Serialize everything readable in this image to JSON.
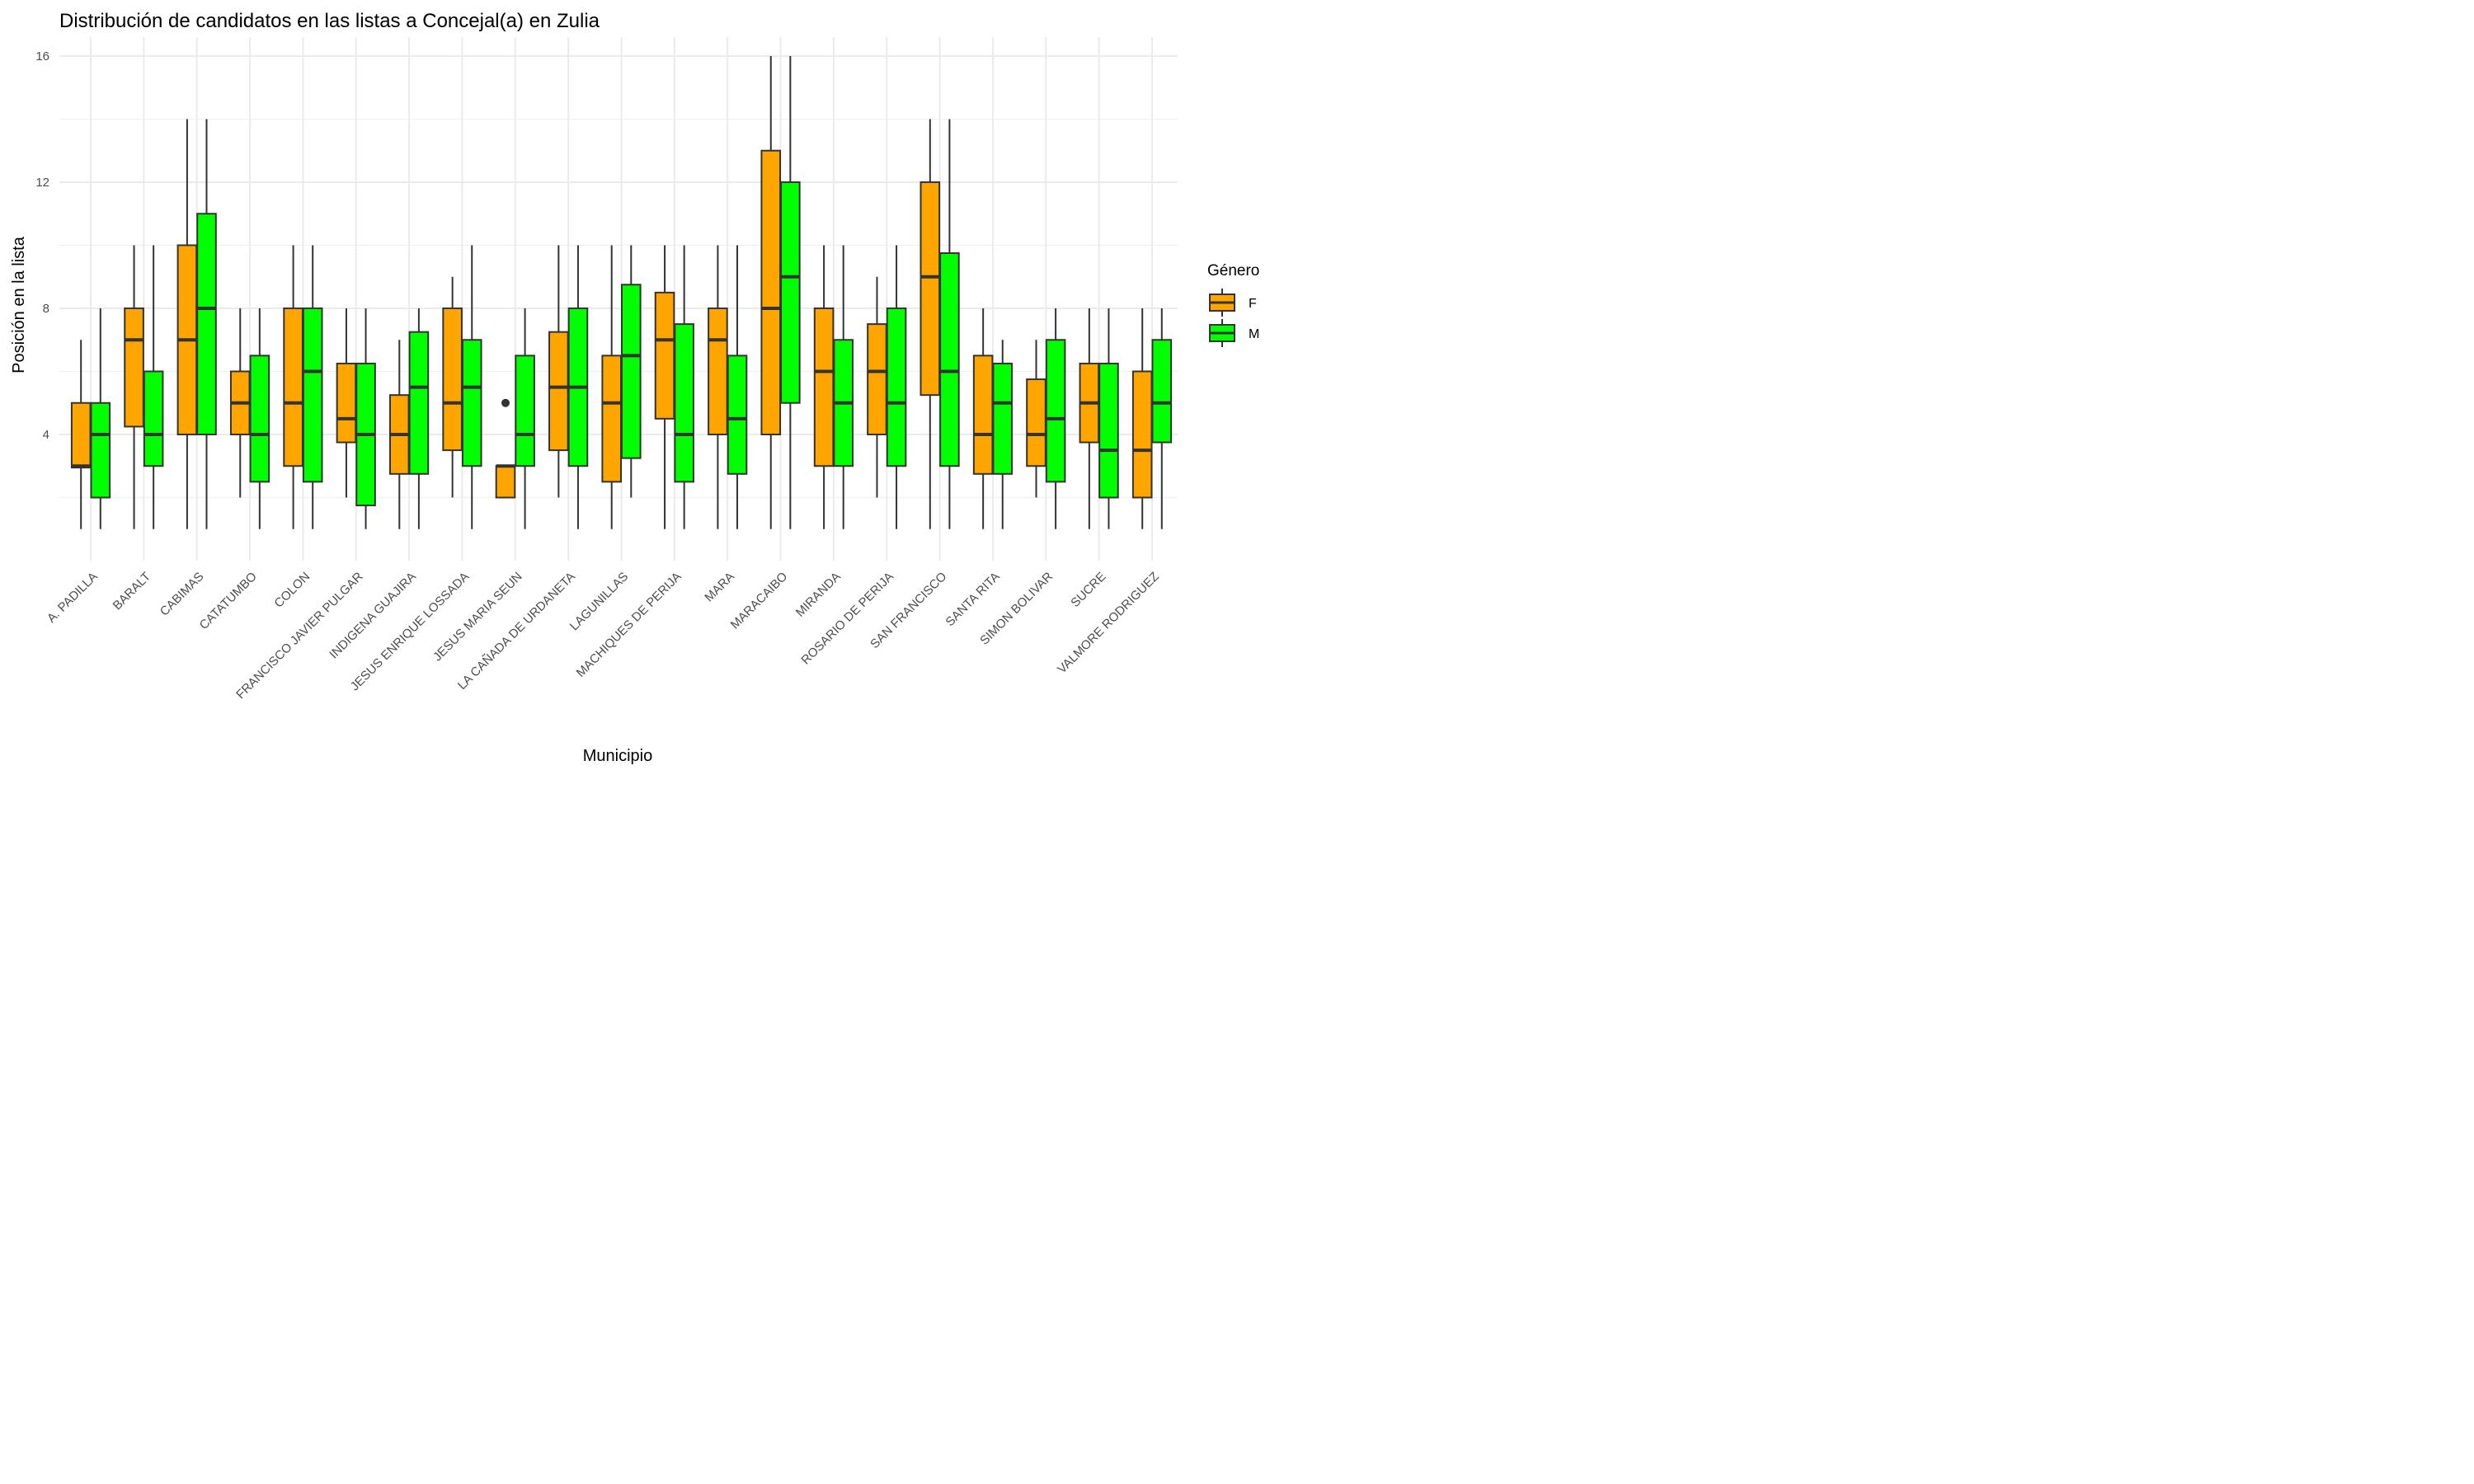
{
  "chart_data": {
    "type": "boxplot",
    "title": "Distribución de candidatos en las listas a Concejal(a) en Zulia",
    "xlabel": "Municipio",
    "ylabel": "Posición en la lista",
    "yticks": [
      4,
      8,
      12,
      16
    ],
    "ylim": [
      0,
      16.6
    ],
    "grid": true,
    "legend": {
      "title": "Género",
      "placement": "right"
    },
    "categories": [
      "A. PADILLA",
      "BARALT",
      "CABIMAS",
      "CATATUMBO",
      "COLON",
      "FRANCISCO JAVIER PULGAR",
      "INDIGENA GUAJIRA",
      "JESUS ENRIQUE LOSSADA",
      "JESUS MARIA SEUN",
      "LA CAÑADA DE URDANETA",
      "LAGUNILLAS",
      "MACHIQUES DE PERIJA",
      "MARA",
      "MARACAIBO",
      "MIRANDA",
      "ROSARIO DE PERIJA",
      "SAN FRANCISCO",
      "SANTA RITA",
      "SIMON BOLIVAR",
      "SUCRE",
      "VALMORE RODRIGUEZ"
    ],
    "series": [
      {
        "name": "F",
        "color": "#FFA500",
        "boxes": [
          {
            "min": 1,
            "q1": 2.95,
            "median": 3,
            "q3": 5,
            "max": 7,
            "outliers": []
          },
          {
            "min": 1,
            "q1": 4.25,
            "median": 7,
            "q3": 8,
            "max": 10,
            "outliers": []
          },
          {
            "min": 1,
            "q1": 4,
            "median": 7,
            "q3": 10,
            "max": 14,
            "outliers": []
          },
          {
            "min": 2,
            "q1": 4,
            "median": 5,
            "q3": 6,
            "max": 8,
            "outliers": []
          },
          {
            "min": 1,
            "q1": 3,
            "median": 5,
            "q3": 8,
            "max": 10,
            "outliers": []
          },
          {
            "min": 2,
            "q1": 3.75,
            "median": 4.5,
            "q3": 6.25,
            "max": 8,
            "outliers": []
          },
          {
            "min": 1,
            "q1": 2.75,
            "median": 4,
            "q3": 5.25,
            "max": 7,
            "outliers": []
          },
          {
            "min": 2,
            "q1": 3.5,
            "median": 5,
            "q3": 8,
            "max": 9,
            "outliers": []
          },
          {
            "min": 2,
            "q1": 2,
            "median": 3,
            "q3": 3,
            "max": 3,
            "outliers": [
              5
            ]
          },
          {
            "min": 2,
            "q1": 3.5,
            "median": 5.5,
            "q3": 7.25,
            "max": 10,
            "outliers": []
          },
          {
            "min": 1,
            "q1": 2.5,
            "median": 5,
            "q3": 6.5,
            "max": 10,
            "outliers": []
          },
          {
            "min": 1,
            "q1": 4.5,
            "median": 7,
            "q3": 8.5,
            "max": 10,
            "outliers": []
          },
          {
            "min": 1,
            "q1": 4,
            "median": 7,
            "q3": 8,
            "max": 10,
            "outliers": []
          },
          {
            "min": 1,
            "q1": 4,
            "median": 8,
            "q3": 13,
            "max": 16,
            "outliers": []
          },
          {
            "min": 1,
            "q1": 3,
            "median": 6,
            "q3": 8,
            "max": 10,
            "outliers": []
          },
          {
            "min": 2,
            "q1": 4,
            "median": 6,
            "q3": 7.5,
            "max": 9,
            "outliers": []
          },
          {
            "min": 1,
            "q1": 5.25,
            "median": 9,
            "q3": 12,
            "max": 14,
            "outliers": []
          },
          {
            "min": 1,
            "q1": 2.75,
            "median": 4,
            "q3": 6.5,
            "max": 8,
            "outliers": []
          },
          {
            "min": 2,
            "q1": 3,
            "median": 4,
            "q3": 5.75,
            "max": 7,
            "outliers": []
          },
          {
            "min": 1,
            "q1": 3.75,
            "median": 5,
            "q3": 6.25,
            "max": 8,
            "outliers": []
          },
          {
            "min": 1,
            "q1": 2,
            "median": 3.5,
            "q3": 6,
            "max": 8,
            "outliers": []
          }
        ]
      },
      {
        "name": "M",
        "color": "#00FF00",
        "boxes": [
          {
            "min": 1,
            "q1": 2,
            "median": 4,
            "q3": 5,
            "max": 8,
            "outliers": []
          },
          {
            "min": 1,
            "q1": 3,
            "median": 4,
            "q3": 6,
            "max": 10,
            "outliers": []
          },
          {
            "min": 1,
            "q1": 4,
            "median": 8,
            "q3": 11,
            "max": 14,
            "outliers": []
          },
          {
            "min": 1,
            "q1": 2.5,
            "median": 4,
            "q3": 6.5,
            "max": 8,
            "outliers": []
          },
          {
            "min": 1,
            "q1": 2.5,
            "median": 6,
            "q3": 8,
            "max": 10,
            "outliers": []
          },
          {
            "min": 1,
            "q1": 1.75,
            "median": 4,
            "q3": 6.25,
            "max": 8,
            "outliers": []
          },
          {
            "min": 1,
            "q1": 2.75,
            "median": 5.5,
            "q3": 7.25,
            "max": 8,
            "outliers": []
          },
          {
            "min": 1,
            "q1": 3,
            "median": 5.5,
            "q3": 7,
            "max": 10,
            "outliers": []
          },
          {
            "min": 1,
            "q1": 3,
            "median": 4,
            "q3": 6.5,
            "max": 8,
            "outliers": []
          },
          {
            "min": 1,
            "q1": 3,
            "median": 5.5,
            "q3": 8,
            "max": 10,
            "outliers": []
          },
          {
            "min": 2,
            "q1": 3.25,
            "median": 6.5,
            "q3": 8.75,
            "max": 10,
            "outliers": []
          },
          {
            "min": 1,
            "q1": 2.5,
            "median": 4,
            "q3": 7.5,
            "max": 10,
            "outliers": []
          },
          {
            "min": 1,
            "q1": 2.75,
            "median": 4.5,
            "q3": 6.5,
            "max": 10,
            "outliers": []
          },
          {
            "min": 1,
            "q1": 5,
            "median": 9,
            "q3": 12,
            "max": 16,
            "outliers": []
          },
          {
            "min": 1,
            "q1": 3,
            "median": 5,
            "q3": 7,
            "max": 10,
            "outliers": []
          },
          {
            "min": 1,
            "q1": 3,
            "median": 5,
            "q3": 8,
            "max": 10,
            "outliers": []
          },
          {
            "min": 1,
            "q1": 3,
            "median": 6,
            "q3": 9.75,
            "max": 14,
            "outliers": []
          },
          {
            "min": 1,
            "q1": 2.75,
            "median": 5,
            "q3": 6.25,
            "max": 7,
            "outliers": []
          },
          {
            "min": 1,
            "q1": 2.5,
            "median": 4.5,
            "q3": 7,
            "max": 8,
            "outliers": []
          },
          {
            "min": 1,
            "q1": 2,
            "median": 3.5,
            "q3": 6.25,
            "max": 8,
            "outliers": []
          },
          {
            "min": 1,
            "q1": 3.75,
            "median": 5,
            "q3": 7,
            "max": 8,
            "outliers": []
          }
        ]
      }
    ]
  }
}
